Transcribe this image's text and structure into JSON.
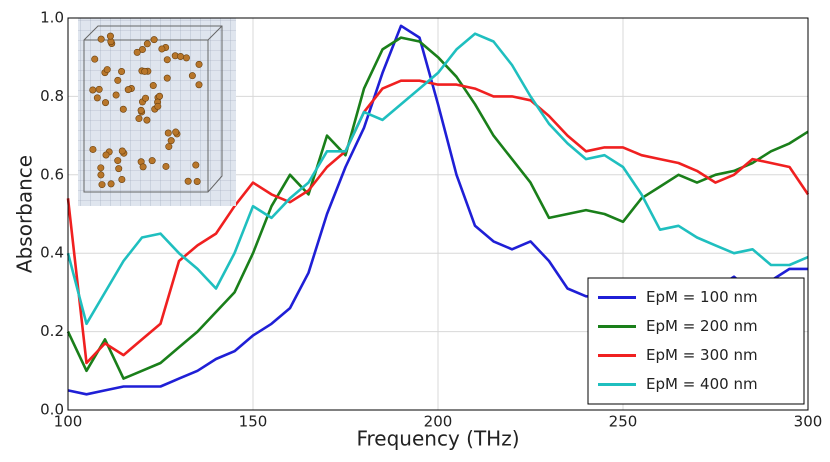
{
  "chart_data": {
    "type": "line",
    "x_label": "Frequency (THz)",
    "y_label": "Absorbance",
    "x": [
      100,
      105,
      110,
      115,
      120,
      125,
      130,
      135,
      140,
      145,
      150,
      155,
      160,
      165,
      170,
      175,
      180,
      185,
      190,
      195,
      200,
      205,
      210,
      215,
      220,
      225,
      230,
      235,
      240,
      245,
      250,
      255,
      260,
      265,
      270,
      275,
      280,
      285,
      290,
      295,
      300
    ],
    "series": [
      {
        "name": "EpM = 100 nm",
        "color": "#1f1fd6",
        "values": [
          0.05,
          0.04,
          0.05,
          0.06,
          0.06,
          0.06,
          0.08,
          0.1,
          0.13,
          0.15,
          0.19,
          0.22,
          0.26,
          0.35,
          0.5,
          0.62,
          0.72,
          0.86,
          0.98,
          0.95,
          0.78,
          0.6,
          0.47,
          0.43,
          0.41,
          0.43,
          0.38,
          0.31,
          0.29,
          0.29,
          0.28,
          0.3,
          0.33,
          0.3,
          0.3,
          0.31,
          0.34,
          0.3,
          0.33,
          0.36,
          0.36
        ]
      },
      {
        "name": "EpM = 200 nm",
        "color": "#1a7f1a",
        "values": [
          0.2,
          0.1,
          0.18,
          0.08,
          0.1,
          0.12,
          0.16,
          0.2,
          0.25,
          0.3,
          0.4,
          0.52,
          0.6,
          0.55,
          0.7,
          0.65,
          0.82,
          0.92,
          0.95,
          0.94,
          0.9,
          0.85,
          0.78,
          0.7,
          0.64,
          0.58,
          0.49,
          0.5,
          0.51,
          0.5,
          0.48,
          0.54,
          0.57,
          0.6,
          0.58,
          0.6,
          0.61,
          0.63,
          0.66,
          0.68,
          0.71
        ]
      },
      {
        "name": "EpM = 300 nm",
        "color": "#f02020",
        "values": [
          0.54,
          0.12,
          0.17,
          0.14,
          0.18,
          0.22,
          0.38,
          0.42,
          0.45,
          0.52,
          0.58,
          0.55,
          0.53,
          0.56,
          0.62,
          0.66,
          0.76,
          0.82,
          0.84,
          0.84,
          0.83,
          0.83,
          0.82,
          0.8,
          0.8,
          0.79,
          0.75,
          0.7,
          0.66,
          0.67,
          0.67,
          0.65,
          0.64,
          0.63,
          0.61,
          0.58,
          0.6,
          0.64,
          0.63,
          0.62,
          0.55
        ]
      },
      {
        "name": "EpM = 400 nm",
        "color": "#1fbfbf",
        "values": [
          0.4,
          0.22,
          0.3,
          0.38,
          0.44,
          0.45,
          0.4,
          0.36,
          0.31,
          0.4,
          0.52,
          0.49,
          0.54,
          0.58,
          0.66,
          0.66,
          0.76,
          0.74,
          0.78,
          0.82,
          0.86,
          0.92,
          0.96,
          0.94,
          0.88,
          0.8,
          0.73,
          0.68,
          0.64,
          0.65,
          0.62,
          0.55,
          0.46,
          0.47,
          0.44,
          0.42,
          0.4,
          0.41,
          0.37,
          0.37,
          0.39
        ]
      }
    ],
    "xlim": [
      100,
      300
    ],
    "ylim": [
      0,
      1
    ],
    "xticks": [
      100,
      150,
      200,
      250,
      300
    ],
    "yticks": [
      {
        "value": 0,
        "label": "0.0"
      },
      0.2,
      0.4,
      0.6,
      0.8,
      {
        "value": 1,
        "label": "1.0"
      }
    ],
    "grid": true,
    "legend": "lower right"
  }
}
